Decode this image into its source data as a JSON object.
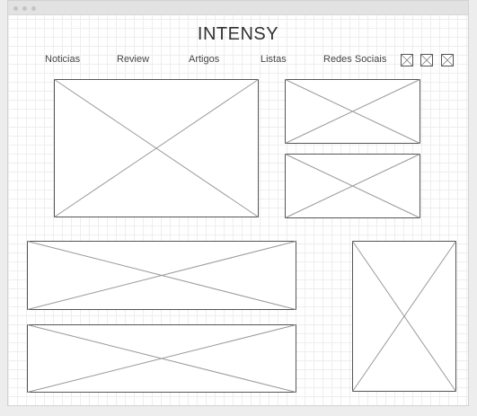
{
  "site": {
    "title": "INTENSY"
  },
  "nav": {
    "items": [
      {
        "label": "Noticias"
      },
      {
        "label": "Review"
      },
      {
        "label": "Artigos"
      },
      {
        "label": "Listas"
      },
      {
        "label": "Redes Sociais"
      }
    ]
  },
  "social_icons": [
    "image-placeholder-icon",
    "image-placeholder-icon",
    "image-placeholder-icon"
  ],
  "colors": {
    "placeholder_stroke": "#555555",
    "placeholder_cross": "#999999",
    "grid_line": "#eeeeee",
    "titlebar": "#e2e2e2"
  }
}
